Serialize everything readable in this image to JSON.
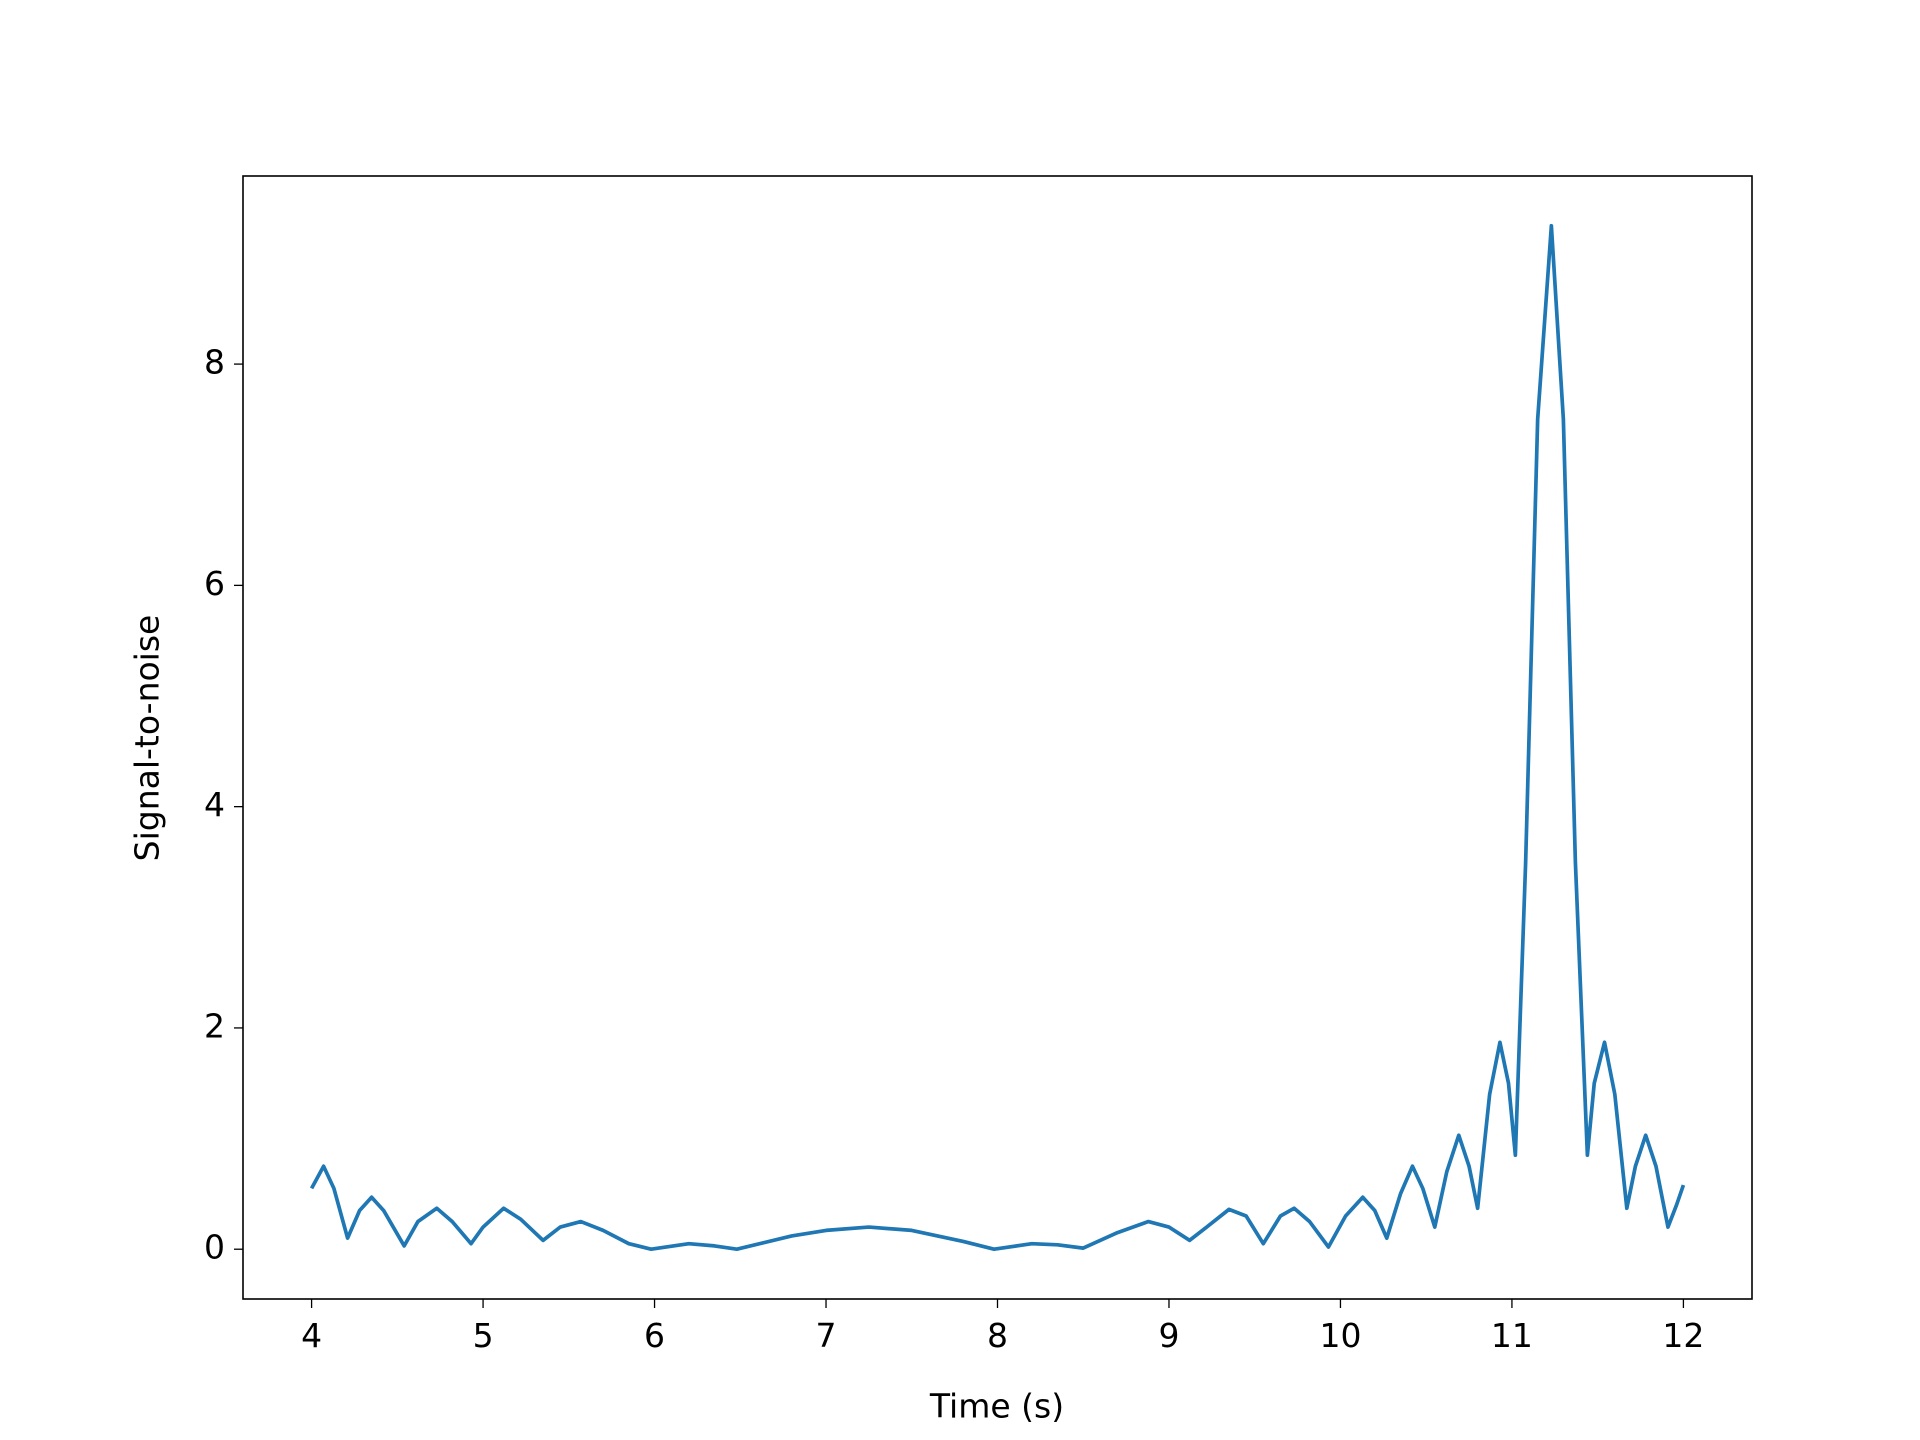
{
  "chart_data": {
    "type": "line",
    "xlabel": "Time (s)",
    "ylabel": "Signal-to-noise",
    "x": [
      4.0,
      4.07,
      4.13,
      4.21,
      4.28,
      4.35,
      4.42,
      4.54,
      4.62,
      4.73,
      4.82,
      4.93,
      5.0,
      5.12,
      5.22,
      5.35,
      5.45,
      5.57,
      5.7,
      5.85,
      5.98,
      6.2,
      6.35,
      6.48,
      6.8,
      7.0,
      7.25,
      7.5,
      7.8,
      7.98,
      8.2,
      8.35,
      8.5,
      8.7,
      8.88,
      9.0,
      9.12,
      9.22,
      9.35,
      9.45,
      9.55,
      9.65,
      9.73,
      9.82,
      9.93,
      10.03,
      10.13,
      10.2,
      10.27,
      10.35,
      10.42,
      10.48,
      10.55,
      10.62,
      10.69,
      10.75,
      10.8,
      10.87,
      10.93,
      10.98,
      11.02,
      11.08,
      11.15,
      11.23,
      11.3,
      11.37,
      11.44,
      11.48,
      11.54,
      11.6,
      11.67,
      11.72,
      11.78,
      11.84,
      11.91,
      11.96,
      12.0
    ],
    "series": [
      {
        "color": "#1f77b4",
        "values": [
          0.55,
          0.75,
          0.55,
          0.1,
          0.35,
          0.47,
          0.35,
          0.03,
          0.25,
          0.37,
          0.25,
          0.05,
          0.2,
          0.37,
          0.27,
          0.08,
          0.2,
          0.25,
          0.17,
          0.05,
          0.0,
          0.05,
          0.03,
          0.0,
          0.12,
          0.17,
          0.2,
          0.17,
          0.07,
          0.0,
          0.05,
          0.04,
          0.01,
          0.15,
          0.25,
          0.2,
          0.08,
          0.2,
          0.36,
          0.3,
          0.05,
          0.3,
          0.37,
          0.25,
          0.02,
          0.3,
          0.47,
          0.35,
          0.1,
          0.5,
          0.75,
          0.55,
          0.2,
          0.7,
          1.03,
          0.75,
          0.37,
          1.4,
          1.87,
          1.5,
          0.85,
          3.5,
          7.5,
          9.25,
          7.5,
          3.5,
          0.85,
          1.5,
          1.87,
          1.4,
          0.37,
          0.75,
          1.03,
          0.75,
          0.2,
          0.4,
          0.58
        ]
      }
    ],
    "xlim": [
      3.6,
      12.4
    ],
    "ylim": [
      -0.45,
      9.7
    ],
    "xticks": [
      4,
      5,
      6,
      7,
      8,
      9,
      10,
      11,
      12
    ],
    "yticks": [
      0,
      2,
      4,
      6,
      8
    ]
  }
}
